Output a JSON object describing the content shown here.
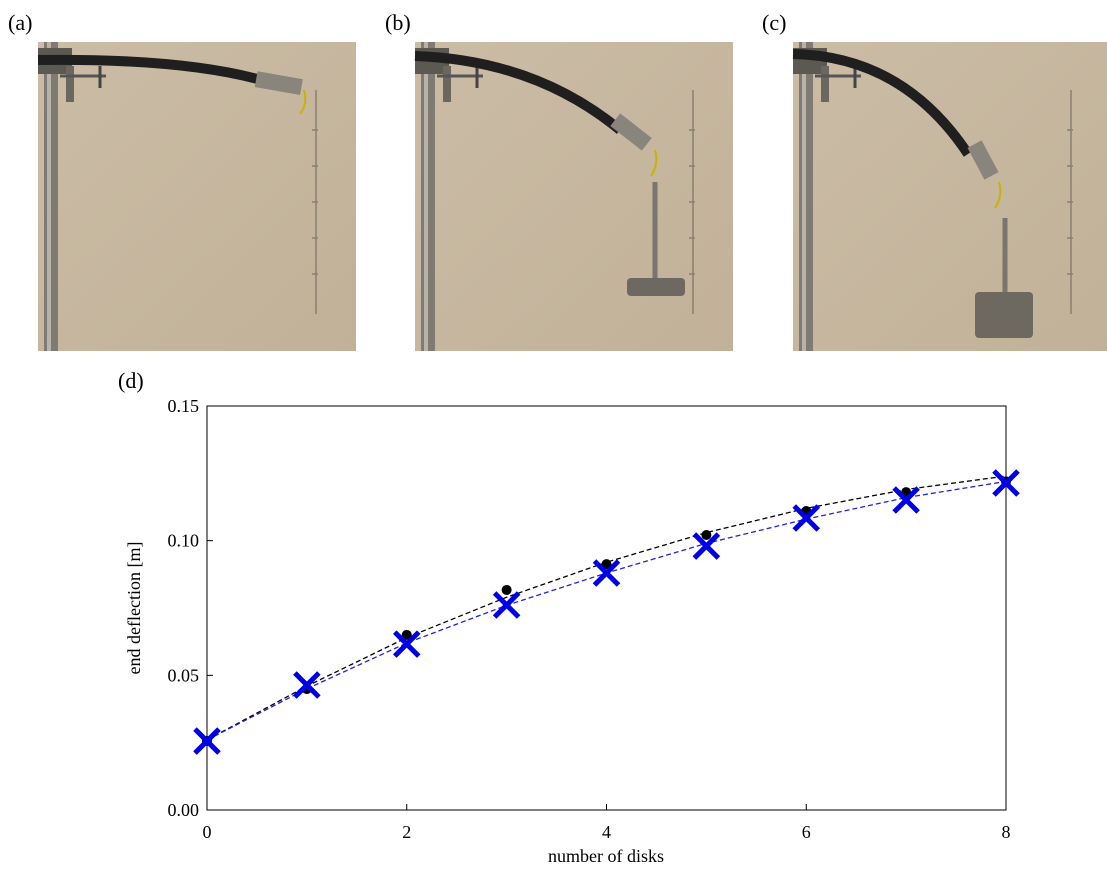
{
  "photos": {
    "labels": [
      "(a)",
      "(b)",
      "(c)"
    ]
  },
  "chart_data": {
    "type": "scatter",
    "panel_label": "(d)",
    "x_label": "number of disks",
    "y_label": "end deflection [m]",
    "x": [
      0,
      1,
      2,
      3,
      4,
      5,
      6,
      7,
      8
    ],
    "series": [
      {
        "color": "#000000",
        "style": "dashed",
        "values": [
          0.026,
          0.046,
          0.064,
          0.079,
          0.092,
          0.103,
          0.112,
          0.119,
          0.124
        ]
      },
      {
        "color": "#2222dd",
        "style": "dashed",
        "values": [
          0.026,
          0.045,
          0.062,
          0.076,
          0.088,
          0.099,
          0.108,
          0.116,
          0.122
        ]
      },
      {
        "color": "#000000",
        "marker": "dot",
        "values": [
          0.0256,
          0.0449,
          0.065,
          0.0817,
          0.0913,
          0.1021,
          0.111,
          0.118,
          0.122
        ]
      },
      {
        "color": "#0000e6",
        "marker": "x",
        "values": [
          0.0256,
          0.0464,
          0.0616,
          0.0761,
          0.088,
          0.098,
          0.1084,
          0.1151,
          0.1214
        ]
      }
    ],
    "xlim": [
      0,
      8
    ],
    "xticks": [
      0,
      2,
      4,
      6,
      8
    ],
    "ylim": [
      0,
      0.15
    ],
    "yticks": [
      {
        "value": 0,
        "label": "0.00"
      },
      0.05,
      {
        "value": 0.1,
        "label": "0.10"
      },
      0.15
    ]
  }
}
